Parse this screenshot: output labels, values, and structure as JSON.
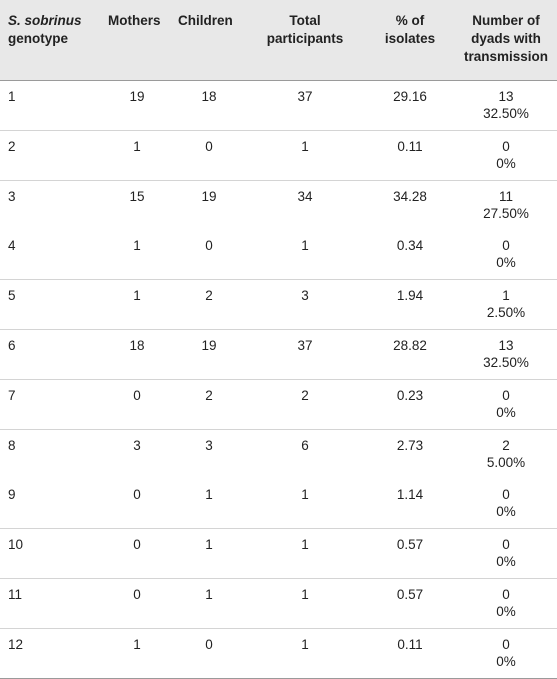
{
  "table": {
    "headers": {
      "genotype": {
        "italic": "S. sobrinus",
        "rest": "genotype"
      },
      "mothers": "Mothers",
      "children": "Children",
      "total_line1": "Total",
      "total_line2": "participants",
      "pct_line1": "% of",
      "pct_line2": "isolates",
      "dyads_line1": "Number of",
      "dyads_line2": "dyads with",
      "dyads_line3": "transmission"
    },
    "rows": [
      {
        "genotype": "1",
        "mothers": "19",
        "children": "18",
        "total": "37",
        "pct": "29.16",
        "dyads_n": "13",
        "dyads_pct": "32.50%"
      },
      {
        "genotype": "2",
        "mothers": "1",
        "children": "0",
        "total": "1",
        "pct": "0.11",
        "dyads_n": "0",
        "dyads_pct": "0%"
      },
      {
        "genotype": "3",
        "mothers": "15",
        "children": "19",
        "total": "34",
        "pct": "34.28",
        "dyads_n": "11",
        "dyads_pct": "27.50%"
      },
      {
        "genotype": "4",
        "mothers": "1",
        "children": "0",
        "total": "1",
        "pct": "0.34",
        "dyads_n": "0",
        "dyads_pct": "0%"
      },
      {
        "genotype": "5",
        "mothers": "1",
        "children": "2",
        "total": "3",
        "pct": "1.94",
        "dyads_n": "1",
        "dyads_pct": "2.50%"
      },
      {
        "genotype": "6",
        "mothers": "18",
        "children": "19",
        "total": "37",
        "pct": "28.82",
        "dyads_n": "13",
        "dyads_pct": "32.50%"
      },
      {
        "genotype": "7",
        "mothers": "0",
        "children": "2",
        "total": "2",
        "pct": "0.23",
        "dyads_n": "0",
        "dyads_pct": "0%"
      },
      {
        "genotype": "8",
        "mothers": "3",
        "children": "3",
        "total": "6",
        "pct": "2.73",
        "dyads_n": "2",
        "dyads_pct": "5.00%"
      },
      {
        "genotype": "9",
        "mothers": "0",
        "children": "1",
        "total": "1",
        "pct": "1.14",
        "dyads_n": "0",
        "dyads_pct": "0%"
      },
      {
        "genotype": "10",
        "mothers": "0",
        "children": "1",
        "total": "1",
        "pct": "0.57",
        "dyads_n": "0",
        "dyads_pct": "0%"
      },
      {
        "genotype": "11",
        "mothers": "0",
        "children": "1",
        "total": "1",
        "pct": "0.57",
        "dyads_n": "0",
        "dyads_pct": "0%"
      },
      {
        "genotype": "12",
        "mothers": "1",
        "children": "0",
        "total": "1",
        "pct": "0.11",
        "dyads_n": "0",
        "dyads_pct": "0%"
      }
    ]
  },
  "colors": {
    "header_bg": "#e8e8e8",
    "text": "#222222",
    "rule": "#d4d4d4"
  }
}
